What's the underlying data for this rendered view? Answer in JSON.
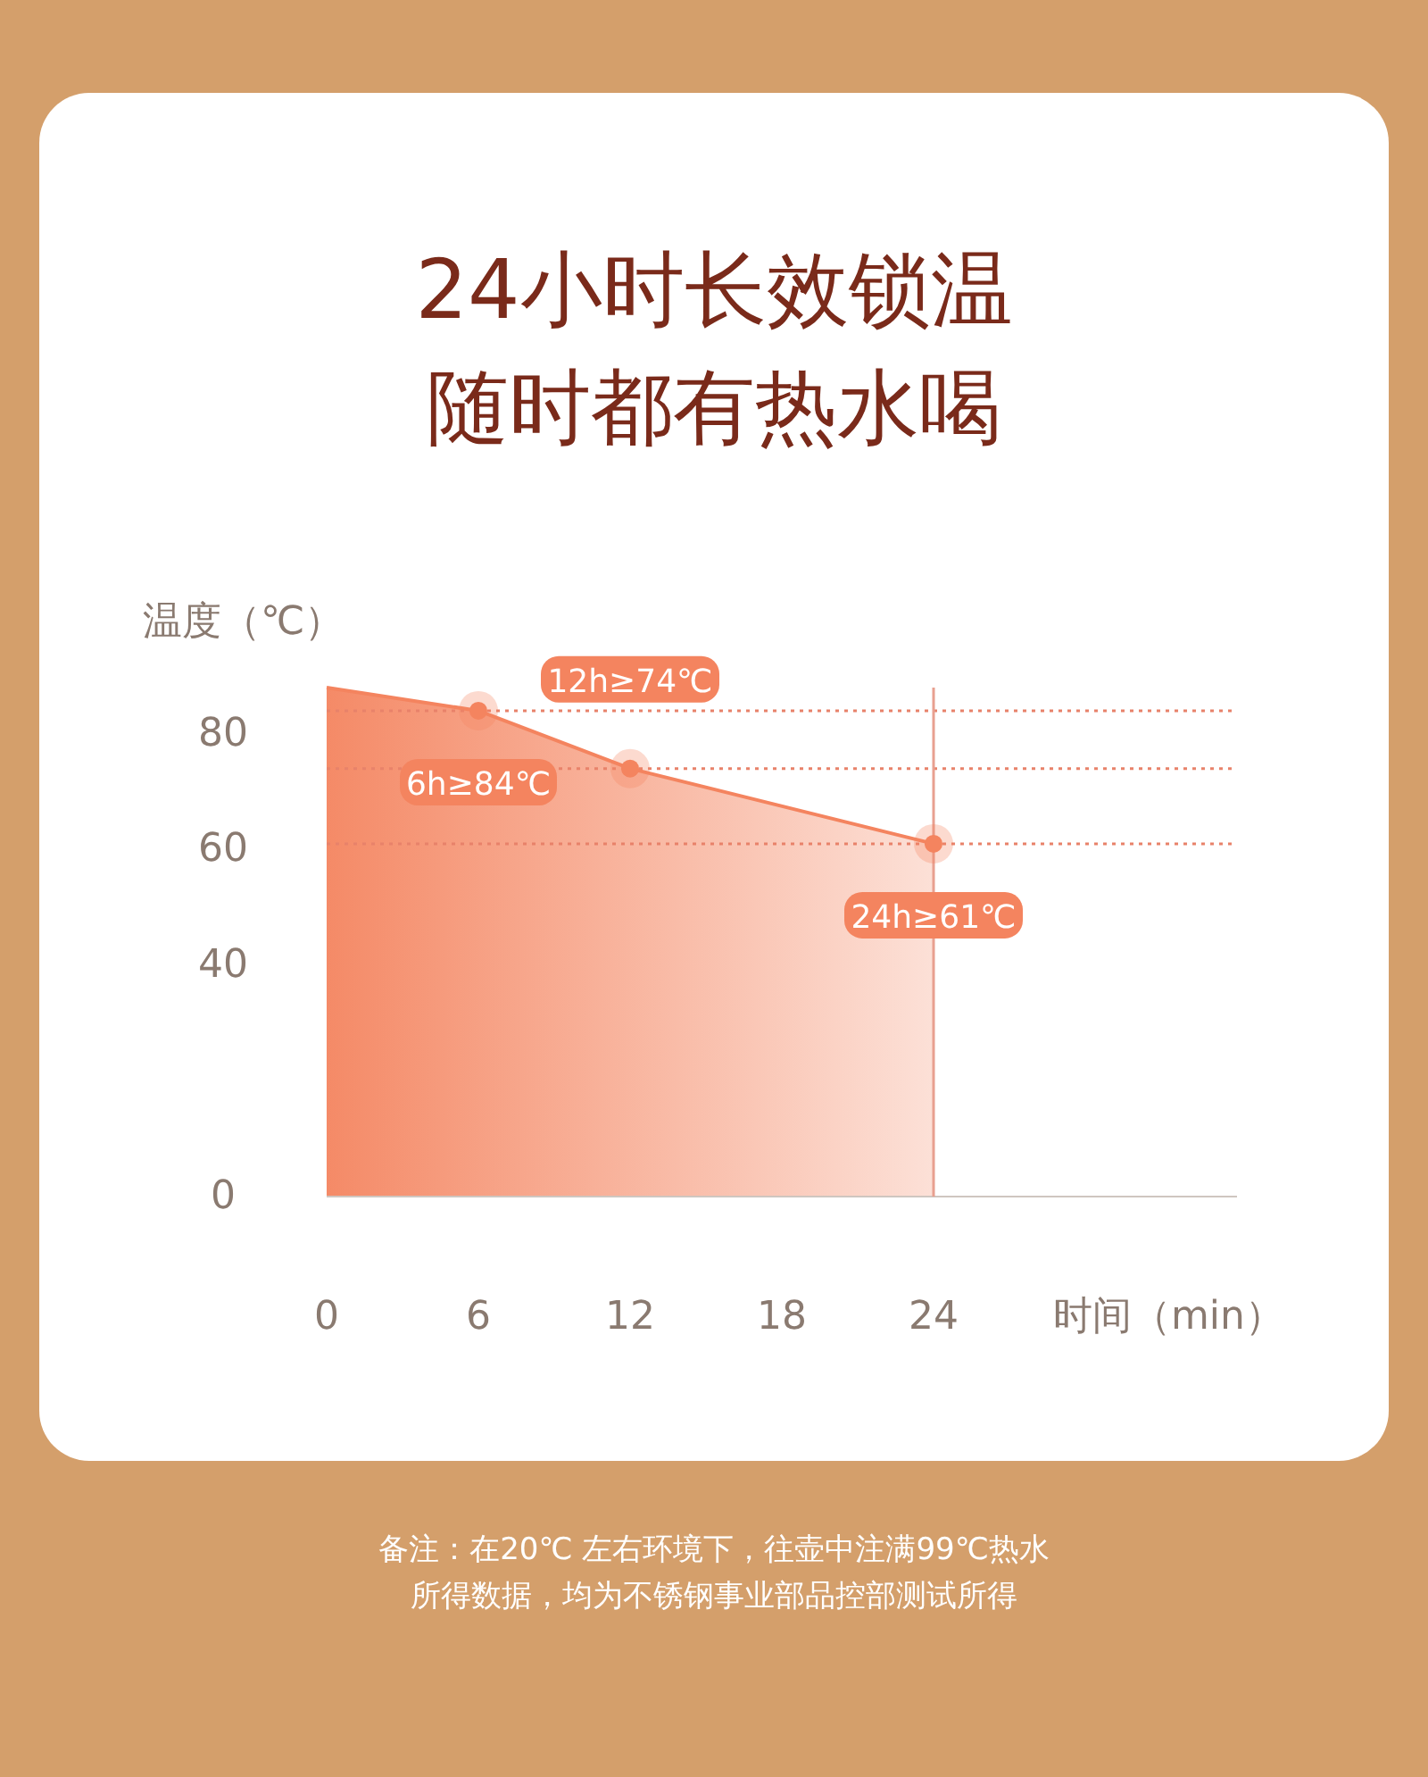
{
  "chart_data": {
    "type": "area",
    "title": "24小时长效锁温",
    "subtitle": "随时都有热水喝",
    "xlabel": "时间（min）",
    "ylabel": "温度（℃）",
    "x": [
      0,
      6,
      12,
      24
    ],
    "values": [
      88,
      84,
      74,
      61
    ],
    "value_labels": [
      null,
      "6h≥84℃",
      "12h≥74℃",
      "24h≥61℃"
    ],
    "color": "#f4845f",
    "xlim": [
      0,
      36
    ],
    "ylim": [
      0,
      88
    ],
    "xticks": [
      0,
      6,
      12,
      18,
      24
    ],
    "yticks": [
      0,
      40,
      60,
      80
    ],
    "grid": false,
    "ref_lines": [
      {
        "axis": "y",
        "value": 84,
        "line_style": "dotted",
        "color": "#e8826a"
      },
      {
        "axis": "y",
        "value": 74,
        "line_style": "dotted",
        "color": "#e8826a"
      },
      {
        "axis": "y",
        "value": 61,
        "line_style": "dotted",
        "color": "#e8826a"
      },
      {
        "axis": "x",
        "value": 24,
        "line_style": "solid",
        "color": "#e8a090"
      }
    ],
    "annotations": [
      "备注：在20℃ 左右环境下，往壶中注满99℃热水",
      "所得数据，均为不锈钢事业部品控部测试所得"
    ]
  }
}
